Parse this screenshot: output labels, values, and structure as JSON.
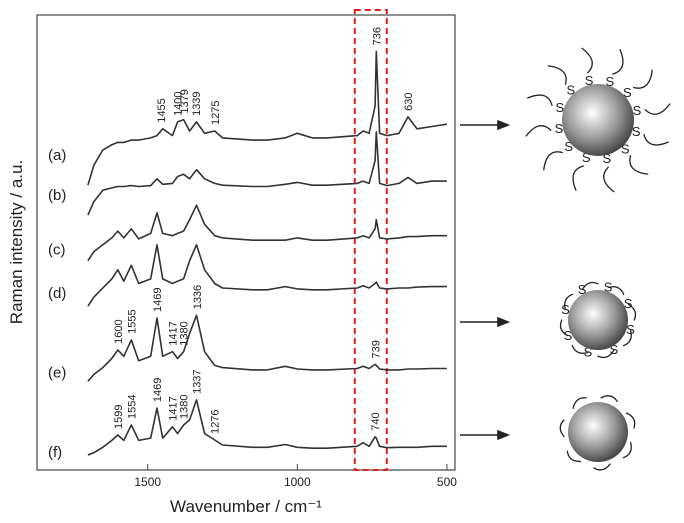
{
  "chart_data": {
    "type": "line",
    "xlabel": "Wavenumber / cm⁻¹",
    "ylabel": "Raman intensity / a.u.",
    "xlim": [
      1870,
      473
    ],
    "ylim": [
      0,
      100
    ],
    "xticks": [
      1500,
      1000,
      500
    ],
    "line_color": "#333333",
    "highlight": {
      "xrange": [
        808,
        701
      ],
      "color": "#e02020"
    },
    "ligand_label": "S",
    "x": [
      1700,
      1680,
      1650,
      1620,
      1600,
      1580,
      1555,
      1530,
      1490,
      1469,
      1450,
      1417,
      1400,
      1380,
      1360,
      1337,
      1310,
      1276,
      1250,
      1150,
      1100,
      1040,
      1000,
      950,
      900,
      800,
      780,
      760,
      740,
      736,
      725,
      700,
      660,
      630,
      600,
      550,
      500
    ],
    "series": [
      {
        "name": "(a)",
        "peaks": [
          1455,
          1400,
          1379,
          1339,
          1275,
          736,
          630
        ],
        "values": [
          62.6,
          67,
          70.3,
          71.5,
          72,
          72,
          72.5,
          72.5,
          73,
          73.5,
          75,
          73.5,
          76.5,
          77,
          74.5,
          76.5,
          74,
          74.5,
          73,
          72.5,
          72.5,
          73,
          74,
          73,
          73,
          73.5,
          74.5,
          74,
          80,
          92,
          74,
          73.5,
          74,
          77.6,
          75,
          75.5,
          76
        ]
      },
      {
        "name": "(b)",
        "peaks": [],
        "values": [
          56,
          59,
          61.5,
          62,
          62.3,
          62.3,
          62.5,
          62.3,
          62.5,
          64,
          62.8,
          63,
          64.5,
          65,
          64,
          66,
          64,
          63,
          62.6,
          62.3,
          62.3,
          62.8,
          63.2,
          62.6,
          62.6,
          63,
          63.5,
          63,
          68,
          74.3,
          63,
          62.5,
          63,
          64.3,
          63,
          63.5,
          63.5
        ]
      },
      {
        "name": "(c)",
        "peaks": [],
        "values": [
          46,
          48,
          49.5,
          51,
          52.5,
          51,
          53,
          50.8,
          52,
          56.5,
          52,
          51.5,
          52,
          52.5,
          55,
          58.2,
          54,
          51.5,
          51,
          50.5,
          50.5,
          50.5,
          51,
          50.5,
          50.5,
          51,
          51.5,
          51,
          53,
          55,
          51,
          50.8,
          51,
          51.3,
          51.3,
          51.5,
          51.5
        ]
      },
      {
        "name": "(d)",
        "peaks": [],
        "values": [
          36,
          38,
          40,
          42,
          44,
          41.5,
          45,
          41,
          42,
          49.5,
          42,
          41,
          41.5,
          42,
          46,
          49.5,
          44,
          41,
          40,
          39.6,
          39.6,
          40.3,
          39.8,
          39.6,
          39.6,
          40,
          40.5,
          40,
          41,
          41.3,
          40,
          39.8,
          40,
          40,
          40.2,
          40.3,
          40.3
        ]
      },
      {
        "name": "(e)",
        "peaks": [
          1600,
          1555,
          1469,
          1417,
          1380,
          1336,
          739
        ],
        "values": [
          19.5,
          21,
          22.5,
          24.5,
          26.4,
          25,
          28.6,
          24,
          25,
          33.4,
          25,
          26,
          24.5,
          26,
          30,
          34,
          26,
          23,
          22.5,
          22,
          22,
          22.8,
          22.2,
          22,
          22,
          22.3,
          22.8,
          22.3,
          23.2,
          23,
          22.2,
          22,
          22,
          22.2,
          22.2,
          22.3,
          22.3
        ]
      },
      {
        "name": "(f)",
        "peaks": [
          1599,
          1554,
          1469,
          1417,
          1380,
          1337,
          1276,
          740
        ],
        "values": [
          3.3,
          3.8,
          5,
          6.5,
          7.7,
          6.5,
          9.9,
          6.5,
          7,
          13.6,
          7,
          9.5,
          8,
          9.9,
          11,
          15.4,
          8,
          6.6,
          5.5,
          5,
          5,
          5.6,
          5,
          4.8,
          4.8,
          5.2,
          6,
          5.2,
          7.3,
          7,
          5.2,
          4.9,
          5,
          5,
          5,
          5.2,
          5.2
        ]
      }
    ]
  }
}
